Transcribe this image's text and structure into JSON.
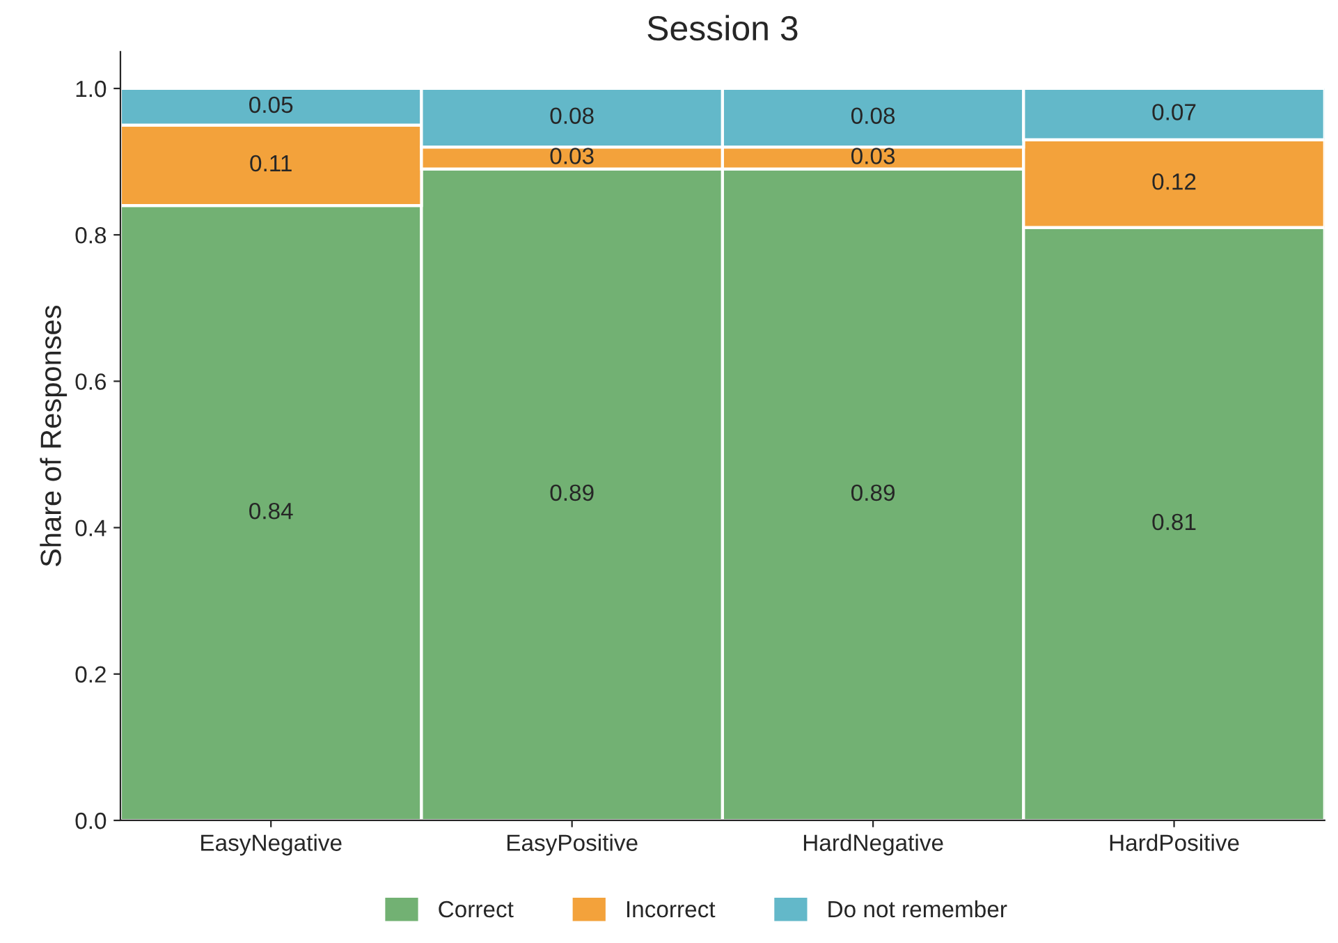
{
  "chart_data": {
    "type": "bar",
    "title": "Session 3",
    "ylabel": "Share of Responses",
    "categories": [
      "EasyNegative",
      "EasyPositive",
      "HardNegative",
      "HardPositive"
    ],
    "stacked": true,
    "series": [
      {
        "name": "Correct",
        "color": "#72b173",
        "values": [
          0.84,
          0.89,
          0.89,
          0.81
        ]
      },
      {
        "name": "Incorrect",
        "color": "#f3a23b",
        "values": [
          0.11,
          0.03,
          0.03,
          0.12
        ]
      },
      {
        "name": "Do not remember",
        "color": "#63b8c9",
        "values": [
          0.05,
          0.08,
          0.08,
          0.07
        ]
      }
    ],
    "ylim": [
      0,
      1.05
    ],
    "yticks": [
      {
        "value": 0,
        "label": "0.0"
      },
      {
        "value": 0.2,
        "label": "0.2"
      },
      {
        "value": 0.4,
        "label": "0.4"
      },
      {
        "value": 0.6,
        "label": "0.6"
      },
      {
        "value": 0.8,
        "label": "0.8"
      },
      {
        "value": 1,
        "label": "1.0"
      }
    ],
    "data_labels": true,
    "grid": false,
    "legend": "bottom"
  }
}
